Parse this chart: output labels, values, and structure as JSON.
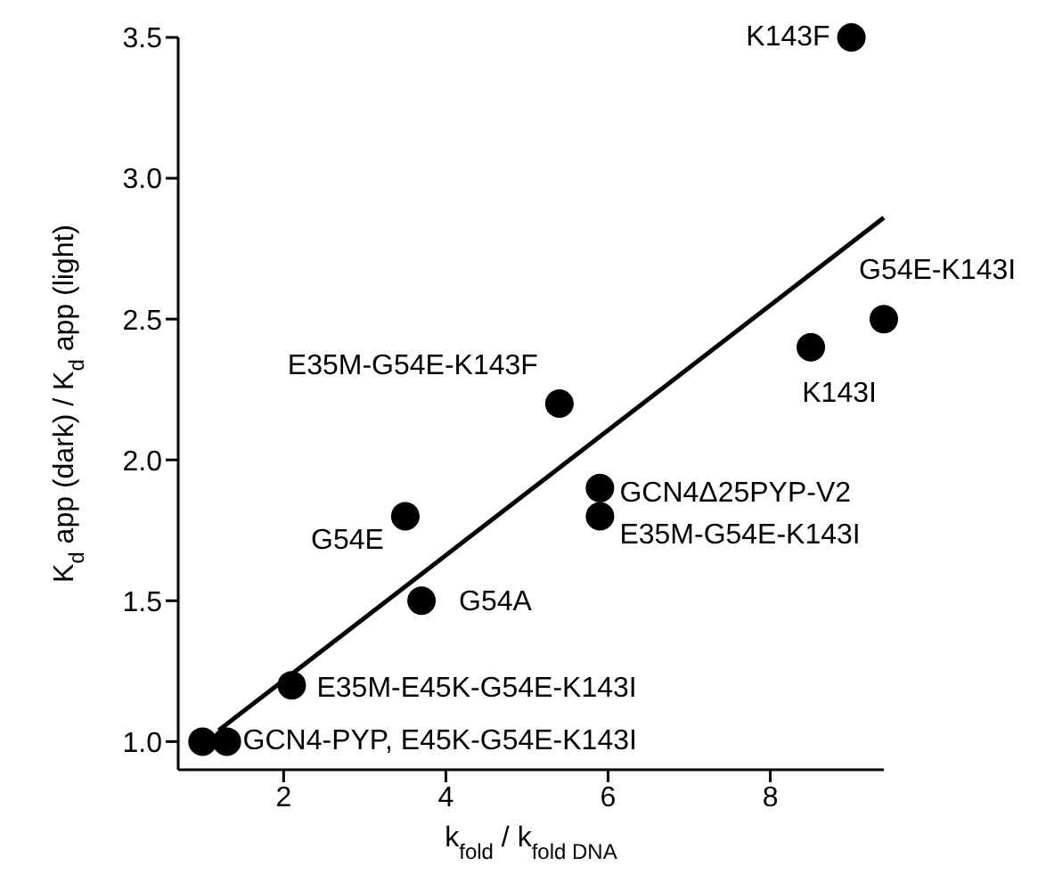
{
  "chart_data": {
    "type": "scatter",
    "xlabel": "k$_{fold}$ / k$_{fold DNA}$",
    "ylabel": "K$_{d}$ app (dark) / K$_{d}$ app (light)",
    "xlim": [
      0.7,
      9.4
    ],
    "xticks": [
      2,
      4,
      6,
      8
    ],
    "ylim": [
      0.9,
      3.5
    ],
    "yticks": [
      {
        "value": 1,
        "label": "1.0"
      },
      {
        "value": 1.5,
        "label": "1.5"
      },
      {
        "value": 2,
        "label": "2.0"
      },
      {
        "value": 2.5,
        "label": "2.5"
      },
      {
        "value": 3,
        "label": "3.0"
      },
      {
        "value": 3.5,
        "label": "3.5"
      }
    ],
    "marker": "circle",
    "series": [
      {
        "type": "line",
        "marker": "none",
        "color": "#000000",
        "x": [
          1.2,
          9.4
        ],
        "values": [
          1.04,
          2.86
        ]
      },
      {
        "color": "#000000",
        "x": [
          9.0,
          9.4,
          8.5,
          5.4,
          5.9,
          5.9,
          3.5,
          3.7,
          2.1,
          1.0,
          1.3
        ],
        "values": [
          3.5,
          2.5,
          2.4,
          2.2,
          1.9,
          1.8,
          1.8,
          1.5,
          1.2,
          1.0,
          1.0
        ]
      }
    ],
    "annotations": [
      {
        "text": "K143F",
        "x": 9.0,
        "y": 3.5
      },
      {
        "text": "G54E-K143I",
        "x": 9.4,
        "y": 2.5
      },
      {
        "text": "K143I",
        "x": 8.5,
        "y": 2.4
      },
      {
        "text": "E35M-G54E-K143F",
        "x": 5.4,
        "y": 2.2
      },
      {
        "text": "GCN4Δ25PYP-V2",
        "x": 5.9,
        "y": 1.9
      },
      {
        "text": "E35M-G54E-K143I",
        "x": 5.9,
        "y": 1.8
      },
      {
        "text": "G54E",
        "x": 3.5,
        "y": 1.8
      },
      {
        "text": "G54A",
        "x": 3.7,
        "y": 1.5
      },
      {
        "text": "E35M-E45K-G54E-K143I",
        "x": 2.1,
        "y": 1.2
      },
      {
        "text": "GCN4-PYP, E45K-G54E-K143I",
        "x": 1.3,
        "y": 1.0
      }
    ]
  }
}
